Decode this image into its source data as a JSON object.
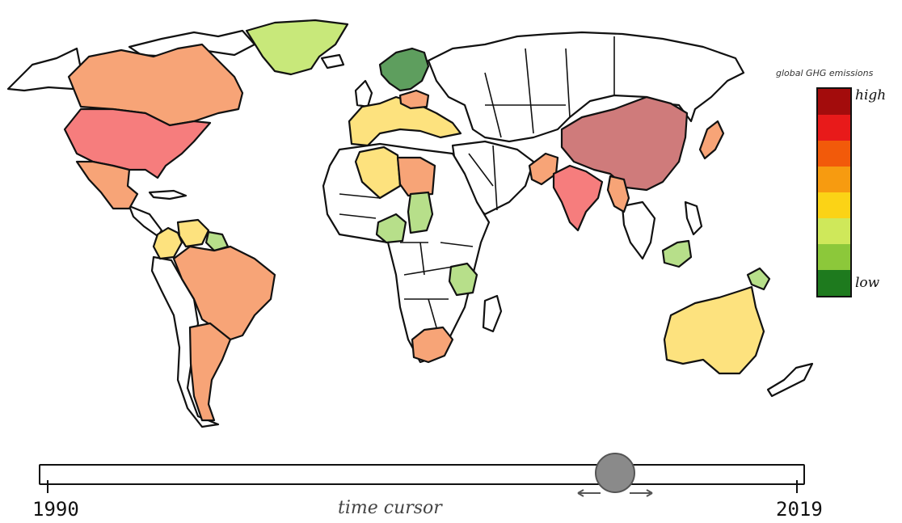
{
  "legend": {
    "title": "global GHG emissions",
    "high_label": "high",
    "low_label": "low",
    "scale_colors": [
      "#a30c0c",
      "#e81a1a",
      "#f25a0a",
      "#f79b10",
      "#fbd316",
      "#cfe85a",
      "#8cc83a",
      "#1e7a1e"
    ]
  },
  "time_cursor": {
    "label": "time cursor",
    "start_label": "1990",
    "end_label": "2019",
    "min": 1990,
    "max": 2019,
    "value": 2012,
    "drag_icon": "left-right-arrows-icon"
  },
  "map": {
    "countries": [
      {
        "name": "Canada",
        "level": "medium-high",
        "color": "#f7a477"
      },
      {
        "name": "United States",
        "level": "high",
        "color": "#f67d7d"
      },
      {
        "name": "Mexico",
        "level": "medium-high",
        "color": "#f7a477"
      },
      {
        "name": "Greenland",
        "level": "low",
        "color": "#c8e87a"
      },
      {
        "name": "Colombia",
        "level": "medium",
        "color": "#fde27e"
      },
      {
        "name": "Venezuela",
        "level": "medium",
        "color": "#fde27e"
      },
      {
        "name": "Guyana",
        "level": "low",
        "color": "#b7df8a"
      },
      {
        "name": "Brazil",
        "level": "medium-high",
        "color": "#f7a477"
      },
      {
        "name": "Argentina",
        "level": "medium-high",
        "color": "#f7a477"
      },
      {
        "name": "Norway",
        "level": "very-low",
        "color": "#5e9e5e"
      },
      {
        "name": "Sweden",
        "level": "very-low",
        "color": "#5e9e5e"
      },
      {
        "name": "Finland",
        "level": "very-low",
        "color": "#5e9e5e"
      },
      {
        "name": "Western Europe",
        "level": "medium",
        "color": "#fde27e"
      },
      {
        "name": "Poland",
        "level": "medium-high",
        "color": "#f7a477"
      },
      {
        "name": "Algeria",
        "level": "medium",
        "color": "#fde27e"
      },
      {
        "name": "Libya",
        "level": "medium-high",
        "color": "#f7a477"
      },
      {
        "name": "Nigeria",
        "level": "low",
        "color": "#b7df8a"
      },
      {
        "name": "Chad",
        "level": "low",
        "color": "#b7df8a"
      },
      {
        "name": "Tanzania",
        "level": "low",
        "color": "#b7df8a"
      },
      {
        "name": "South Africa",
        "level": "medium-high",
        "color": "#f7a477"
      },
      {
        "name": "India",
        "level": "high",
        "color": "#f67d7d"
      },
      {
        "name": "Pakistan",
        "level": "medium-high",
        "color": "#f7a477"
      },
      {
        "name": "China",
        "level": "very-high",
        "color": "#cf7b7b"
      },
      {
        "name": "Myanmar",
        "level": "medium-high",
        "color": "#f7a477"
      },
      {
        "name": "Japan",
        "level": "medium-high",
        "color": "#f7a477"
      },
      {
        "name": "Indonesia",
        "level": "low",
        "color": "#b7df8a"
      },
      {
        "name": "Papua New Guinea",
        "level": "low",
        "color": "#b7df8a"
      },
      {
        "name": "Australia",
        "level": "medium",
        "color": "#fde27e"
      }
    ]
  }
}
